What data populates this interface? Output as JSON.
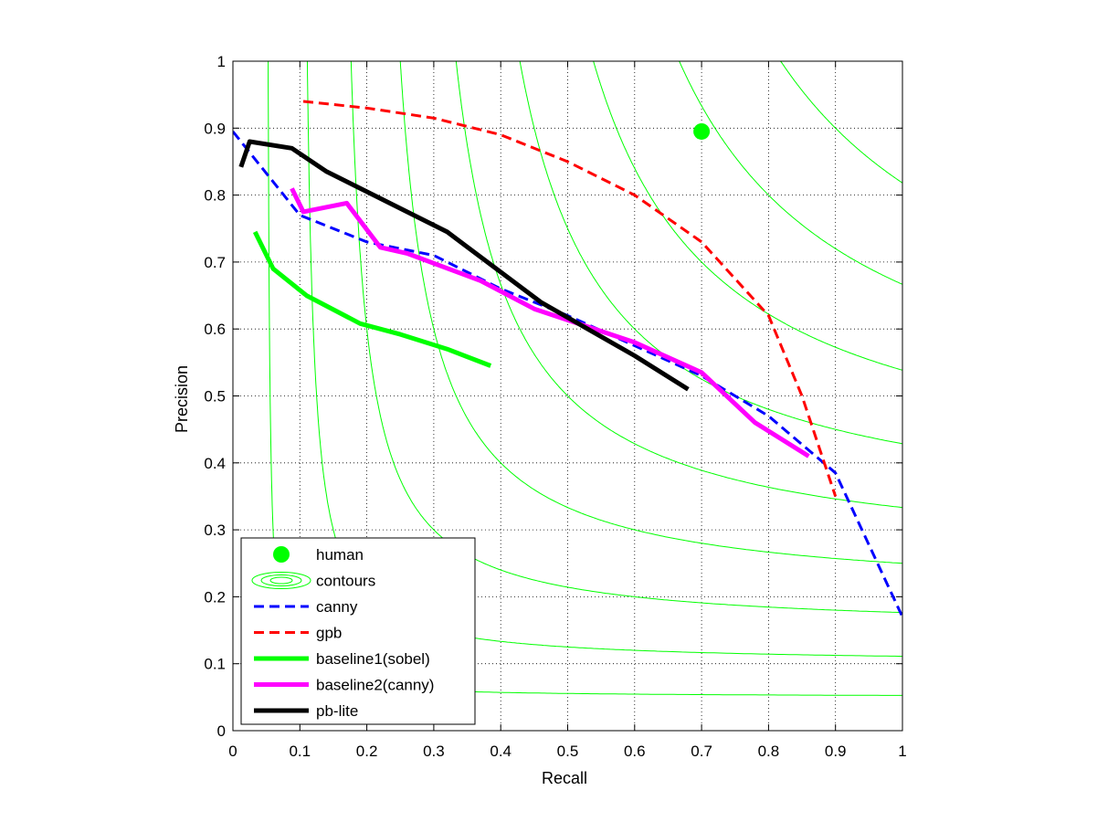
{
  "chart_data": {
    "type": "line",
    "title": "",
    "xlabel": "Recall",
    "ylabel": "Precision",
    "xlim": [
      0,
      1
    ],
    "ylim": [
      0,
      1
    ],
    "grid": true,
    "legend_position": "bottom-left",
    "xticks": [
      "0",
      "0.1",
      "0.2",
      "0.3",
      "0.4",
      "0.5",
      "0.6",
      "0.7",
      "0.8",
      "0.9",
      "1"
    ],
    "yticks": [
      "0",
      "0.1",
      "0.2",
      "0.3",
      "0.4",
      "0.5",
      "0.6",
      "0.7",
      "0.8",
      "0.9",
      "1"
    ],
    "contours": {
      "name": "contours",
      "color": "#00ff00",
      "f_values": [
        0.1,
        0.2,
        0.3,
        0.4,
        0.5,
        0.6,
        0.7,
        0.8,
        0.9
      ]
    },
    "series": [
      {
        "name": "human",
        "style": "marker",
        "color": "#00ff00",
        "points": [
          [
            0.7,
            0.895
          ]
        ]
      },
      {
        "name": "canny",
        "style": "dashed",
        "color": "#0000ff",
        "width": 3,
        "points": [
          [
            0.0,
            0.895
          ],
          [
            0.1,
            0.77
          ],
          [
            0.2,
            0.73
          ],
          [
            0.3,
            0.71
          ],
          [
            0.4,
            0.66
          ],
          [
            0.5,
            0.62
          ],
          [
            0.6,
            0.575
          ],
          [
            0.7,
            0.53
          ],
          [
            0.8,
            0.47
          ],
          [
            0.9,
            0.385
          ],
          [
            1.0,
            0.17
          ]
        ]
      },
      {
        "name": "gpb",
        "style": "dashed",
        "color": "#ff0000",
        "width": 3,
        "points": [
          [
            0.105,
            0.94
          ],
          [
            0.2,
            0.93
          ],
          [
            0.3,
            0.915
          ],
          [
            0.4,
            0.89
          ],
          [
            0.5,
            0.85
          ],
          [
            0.6,
            0.8
          ],
          [
            0.7,
            0.73
          ],
          [
            0.8,
            0.62
          ],
          [
            0.85,
            0.5
          ],
          [
            0.9,
            0.35
          ]
        ]
      },
      {
        "name": "baseline1(sobel)",
        "style": "solid",
        "color": "#00ff00",
        "width": 5,
        "points": [
          [
            0.033,
            0.745
          ],
          [
            0.06,
            0.69
          ],
          [
            0.11,
            0.65
          ],
          [
            0.19,
            0.608
          ],
          [
            0.25,
            0.592
          ],
          [
            0.32,
            0.57
          ],
          [
            0.385,
            0.545
          ]
        ]
      },
      {
        "name": "baseline2(canny)",
        "style": "solid",
        "color": "#ff00ff",
        "width": 5,
        "points": [
          [
            0.088,
            0.81
          ],
          [
            0.105,
            0.775
          ],
          [
            0.17,
            0.788
          ],
          [
            0.22,
            0.722
          ],
          [
            0.26,
            0.713
          ],
          [
            0.37,
            0.672
          ],
          [
            0.45,
            0.63
          ],
          [
            0.6,
            0.58
          ],
          [
            0.7,
            0.535
          ],
          [
            0.78,
            0.46
          ],
          [
            0.86,
            0.41
          ]
        ]
      },
      {
        "name": "pb-lite",
        "style": "solid",
        "color": "#000000",
        "width": 5,
        "points": [
          [
            0.012,
            0.842
          ],
          [
            0.025,
            0.88
          ],
          [
            0.088,
            0.87
          ],
          [
            0.14,
            0.835
          ],
          [
            0.32,
            0.745
          ],
          [
            0.46,
            0.64
          ],
          [
            0.6,
            0.56
          ],
          [
            0.68,
            0.51
          ]
        ]
      }
    ]
  }
}
